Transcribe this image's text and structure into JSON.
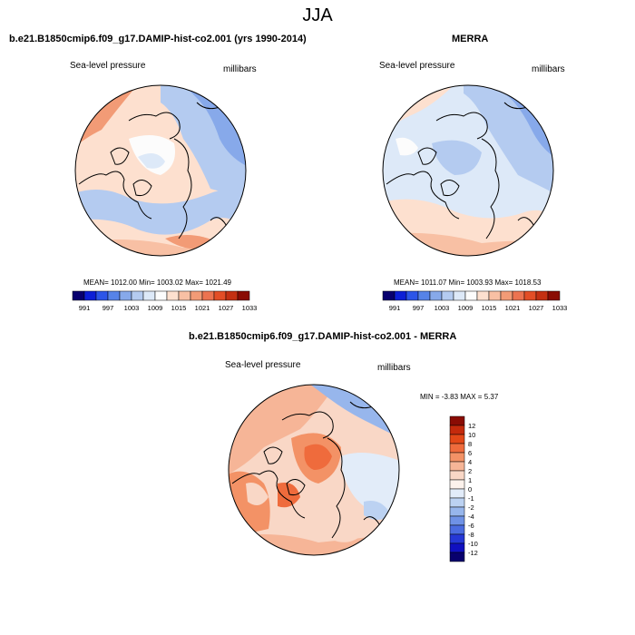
{
  "title": "JJA",
  "panels": [
    {
      "id": "model",
      "title": "b.e21.B1850cmip6.f09_g17.DAMIP-hist-co2.001 (yrs 1990-2014)",
      "left_label": "Sea-level pressure",
      "right_label": "millibars",
      "stats": "MEAN= 1012.00  Min= 1003.02  Max= 1021.49"
    },
    {
      "id": "obs",
      "title": "MERRA",
      "left_label": "Sea-level pressure",
      "right_label": "millibars",
      "stats": "MEAN= 1011.07  Min= 1003.93  Max= 1018.53"
    },
    {
      "id": "diff",
      "title": "b.e21.B1850cmip6.f09_g17.DAMIP-hist-co2.001 - MERRA",
      "left_label": "Sea-level pressure",
      "right_label": "millibars",
      "stats": "MIN =  -3.83 MAX =   5.37"
    }
  ],
  "abs_colorbar": {
    "colors": [
      "#08006e",
      "#0d1fd6",
      "#2c55e8",
      "#5683e8",
      "#87a9ea",
      "#b4cbf0",
      "#dde9f8",
      "#fcfcfc",
      "#fde0cf",
      "#f8c0a4",
      "#f29b76",
      "#ec7350",
      "#e34e26",
      "#c43012",
      "#8a0c04"
    ],
    "labels": [
      "991",
      "997",
      "1003",
      "1009",
      "1015",
      "1021",
      "1027",
      "1033"
    ]
  },
  "diff_colorbar": {
    "colors": [
      "#8a0c04",
      "#c42a0c",
      "#e34818",
      "#ef6b3c",
      "#f39266",
      "#f6b597",
      "#f9d7c6",
      "#fcf2ec",
      "#e2ecf9",
      "#bcd2f2",
      "#97b6ec",
      "#6f92e6",
      "#4b6ce0",
      "#2538d6",
      "#1010c0",
      "#08006e"
    ],
    "labels": [
      "12",
      "10",
      "8",
      "6",
      "4",
      "2",
      "1",
      "0",
      "-1",
      "-2",
      "-4",
      "-6",
      "-8",
      "-10",
      "-12"
    ]
  },
  "chart_data": [
    {
      "type": "heatmap",
      "title": "b.e21.B1850cmip6.f09_g17.DAMIP-hist-co2.001 (yrs 1990-2014)",
      "variable": "Sea-level pressure",
      "units": "millibars",
      "projection": "north polar stereographic",
      "mean": 1012.0,
      "min": 1003.02,
      "max": 1021.49,
      "levels": [
        991,
        997,
        1003,
        1009,
        1015,
        1021,
        1027,
        1033
      ]
    },
    {
      "type": "heatmap",
      "title": "MERRA",
      "variable": "Sea-level pressure",
      "units": "millibars",
      "projection": "north polar stereographic",
      "mean": 1011.07,
      "min": 1003.93,
      "max": 1018.53,
      "levels": [
        991,
        997,
        1003,
        1009,
        1015,
        1021,
        1027,
        1033
      ]
    },
    {
      "type": "heatmap",
      "title": "b.e21.B1850cmip6.f09_g17.DAMIP-hist-co2.001 - MERRA",
      "variable": "Sea-level pressure",
      "units": "millibars",
      "projection": "north polar stereographic",
      "min": -3.83,
      "max": 5.37,
      "levels": [
        -12,
        -10,
        -8,
        -6,
        -4,
        -2,
        -1,
        0,
        1,
        2,
        4,
        6,
        8,
        10,
        12
      ]
    }
  ]
}
